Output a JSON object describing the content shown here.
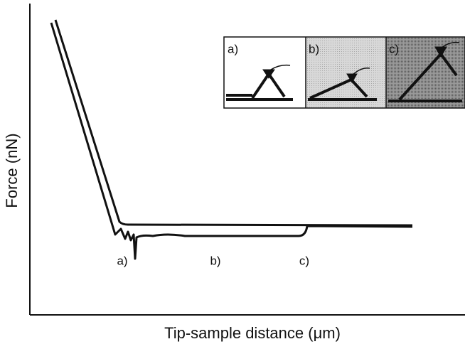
{
  "y_axis_label": "Force (nN)",
  "x_axis_label": "Tip-sample distance (μm)",
  "annotations": [
    "a)",
    "b)",
    "c)"
  ],
  "inset": {
    "panels": [
      "a)",
      "b)",
      "c)"
    ]
  }
}
